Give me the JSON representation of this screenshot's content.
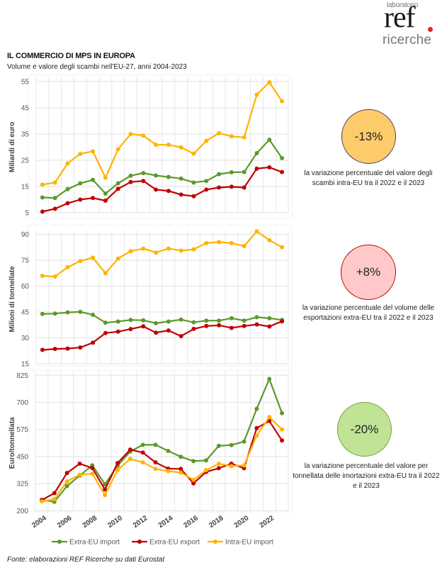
{
  "header": {
    "logo": {
      "top": "laboratorio",
      "main": "ref",
      "bottom": "ricerche"
    },
    "title": "IL COMMERCIO DI MPS IN EUROPA",
    "subtitle": "Volume e valore degli scambi nell'EU-27, anni 2004-2023"
  },
  "colors": {
    "extra_eu_import": "#5a9a2a",
    "extra_eu_export": "#c00000",
    "intra_eu_import": "#ffb300"
  },
  "legend": [
    {
      "key": "extra_eu_import",
      "label": "Extra-EU import"
    },
    {
      "key": "extra_eu_export",
      "label": "Extra-EU export"
    },
    {
      "key": "intra_eu_import",
      "label": "Intra-EU import"
    }
  ],
  "badges": [
    {
      "value": "-13%",
      "fill": "#fecb6b",
      "border": "#4b3a5c",
      "caption": "la variazione percentuale  del valore degli scambi intra-EU tra il 2022 e il 2023"
    },
    {
      "value": "+8%",
      "fill": "#ffc9c9",
      "border": "#c00000",
      "caption": "la variazione percentuale  del volume delle esportazioni extra-EU tra il 2022 e il 2023"
    },
    {
      "value": "-20%",
      "fill": "#c0e395",
      "border": "#6aa33a",
      "caption": "la variazione percentuale  del valore per tonnellata delle imortazioni extra-EU tra il 2022 e il 2023"
    }
  ],
  "source": "Fonte: elaborazioni REF Ricerche su dati Eurostat",
  "chart_data": [
    {
      "type": "line",
      "title": "",
      "xlabel": "",
      "ylabel": "Miliardi di euro",
      "ylim": [
        5,
        55
      ],
      "yticks": [
        5,
        15,
        25,
        35,
        45,
        55
      ],
      "grid": true,
      "x": [
        2004,
        2005,
        2006,
        2007,
        2008,
        2009,
        2010,
        2011,
        2012,
        2013,
        2014,
        2015,
        2016,
        2017,
        2018,
        2019,
        2020,
        2021,
        2022,
        2023
      ],
      "series": [
        {
          "name": "Extra-EU import",
          "key": "extra_eu_import",
          "values": [
            10.8,
            10.6,
            14.0,
            16.2,
            17.5,
            12.3,
            16.2,
            19.1,
            20.1,
            19.2,
            18.6,
            18.0,
            16.5,
            17.1,
            19.7,
            20.4,
            20.5,
            27.7,
            32.8,
            25.8
          ]
        },
        {
          "name": "Extra-EU export",
          "key": "extra_eu_export",
          "values": [
            5.4,
            6.5,
            8.6,
            10.0,
            10.6,
            9.6,
            14.1,
            16.7,
            17.1,
            13.8,
            13.3,
            11.9,
            11.3,
            13.8,
            14.6,
            14.9,
            14.6,
            21.8,
            22.3,
            20.5
          ]
        },
        {
          "name": "Intra-EU import",
          "key": "intra_eu_import",
          "values": [
            15.7,
            16.5,
            23.8,
            27.4,
            28.4,
            18.3,
            29.2,
            35.0,
            34.4,
            30.9,
            30.9,
            29.9,
            27.5,
            32.4,
            35.3,
            34.1,
            33.7,
            50.0,
            54.7,
            47.5
          ]
        }
      ]
    },
    {
      "type": "line",
      "title": "",
      "xlabel": "",
      "ylabel": "Milioni di tonnellate",
      "ylim": [
        15,
        90
      ],
      "yticks": [
        15,
        30,
        45,
        60,
        75,
        90
      ],
      "grid": true,
      "x": [
        2004,
        2005,
        2006,
        2007,
        2008,
        2009,
        2010,
        2011,
        2012,
        2013,
        2014,
        2015,
        2016,
        2017,
        2018,
        2019,
        2020,
        2021,
        2022,
        2023
      ],
      "series": [
        {
          "name": "Extra-EU import",
          "key": "extra_eu_import",
          "values": [
            43.9,
            44.1,
            44.8,
            45.1,
            43.4,
            38.8,
            39.5,
            40.4,
            40.2,
            38.5,
            39.5,
            40.6,
            39.0,
            40.0,
            40.0,
            41.4,
            40.0,
            42.0,
            41.4,
            40.4
          ]
        },
        {
          "name": "Extra-EU export",
          "key": "extra_eu_export",
          "values": [
            23.0,
            23.6,
            23.8,
            24.4,
            27.2,
            32.8,
            33.6,
            35.1,
            36.7,
            33.0,
            34.3,
            31.0,
            35.2,
            36.9,
            37.3,
            35.8,
            36.9,
            37.8,
            36.6,
            39.6
          ]
        },
        {
          "name": "Intra-EU import",
          "key": "intra_eu_import",
          "values": [
            66.0,
            65.6,
            71.0,
            74.6,
            76.5,
            67.5,
            76.0,
            80.3,
            81.8,
            79.5,
            81.8,
            80.6,
            81.4,
            85.0,
            85.6,
            85.0,
            83.3,
            91.8,
            86.7,
            82.6
          ]
        }
      ]
    },
    {
      "type": "line",
      "title": "",
      "xlabel": "",
      "ylabel": "Euro/tonnellata",
      "ylim": [
        200,
        825
      ],
      "yticks": [
        200,
        325,
        450,
        575,
        700,
        825
      ],
      "xticks": [
        2004,
        2006,
        2008,
        2010,
        2012,
        2014,
        2016,
        2018,
        2020,
        2022
      ],
      "grid": true,
      "legend": "bottom",
      "x": [
        2004,
        2005,
        2006,
        2007,
        2008,
        2009,
        2010,
        2011,
        2012,
        2013,
        2014,
        2015,
        2016,
        2017,
        2018,
        2019,
        2020,
        2021,
        2022,
        2023
      ],
      "series": [
        {
          "name": "Extra-EU import",
          "key": "extra_eu_import",
          "values": [
            250,
            241,
            314,
            362,
            409,
            322,
            408,
            473,
            504,
            504,
            476,
            449,
            429,
            432,
            499,
            503,
            519,
            670,
            808,
            650
          ]
        },
        {
          "name": "Extra-EU export",
          "key": "extra_eu_export",
          "values": [
            249,
            281,
            374,
            417,
            397,
            298,
            420,
            482,
            468,
            423,
            394,
            393,
            326,
            379,
            396,
            417,
            396,
            581,
            614,
            524
          ]
        },
        {
          "name": "Intra-EU import",
          "key": "intra_eu_import",
          "values": [
            243,
            253,
            335,
            366,
            371,
            272,
            388,
            439,
            423,
            393,
            383,
            376,
            342,
            387,
            417,
            406,
            409,
            546,
            632,
            575
          ]
        }
      ]
    }
  ]
}
